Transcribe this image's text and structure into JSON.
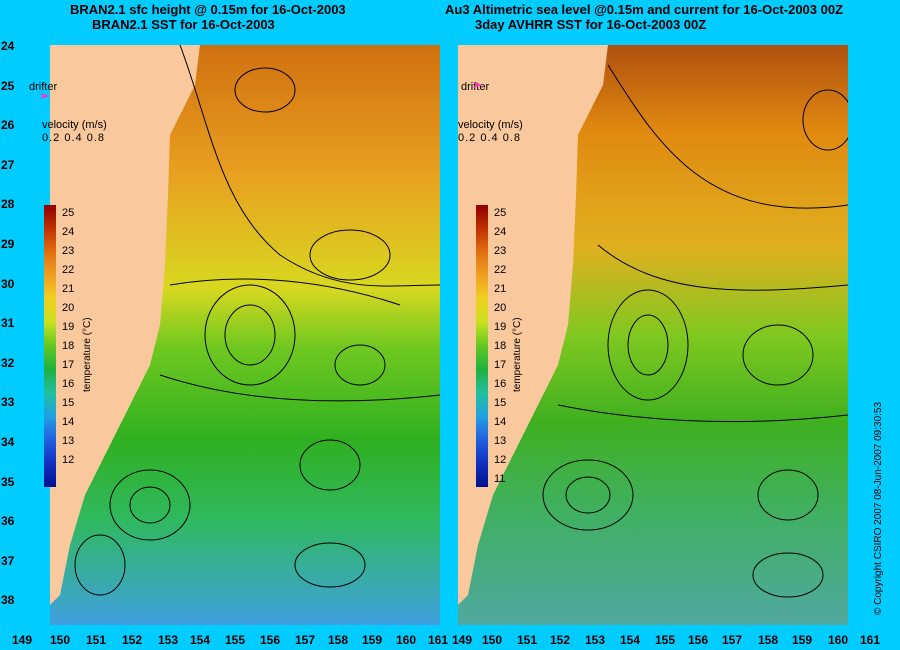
{
  "left_title_1": "BRAN2.1 sfc height @ 0.15m for 16-Oct-2003",
  "left_title_2": "BRAN2.1 SST for 16-Oct-2003",
  "right_title_1": "Au3 Altimetric sea level  @0.15m and current for 16-Oct-2003 00Z",
  "right_title_2": "3day AVHRR SST for 16-Oct-2003 00Z",
  "lat_labels": [
    "24",
    "25",
    "26",
    "27",
    "28",
    "29",
    "30",
    "31",
    "32",
    "33",
    "34",
    "35",
    "36",
    "37",
    "38"
  ],
  "lon_labels": [
    "149",
    "150",
    "151",
    "152",
    "153",
    "154",
    "155",
    "156",
    "157",
    "158",
    "159",
    "160",
    "161"
  ],
  "drifter_label": "drifter",
  "velocity_label": "velocity (m/s)",
  "velocity_scale": "0.2 0.4 0.8",
  "left_colorbar_ticks": [
    "25",
    "24",
    "23",
    "22",
    "21",
    "20",
    "19",
    "18",
    "17",
    "16",
    "15",
    "14",
    "13",
    "12"
  ],
  "right_colorbar_ticks": [
    "25",
    "24",
    "23",
    "22",
    "21",
    "20",
    "19",
    "18",
    "17",
    "16",
    "15",
    "14",
    "13",
    "12",
    "11"
  ],
  "colorbar_title": "temperature (°C)",
  "copyright": "© Copyright CSIRO 2007   08-Jun-2007 09:30:53",
  "colors": {
    "background": "#00ccff",
    "land": "#f9c89d",
    "drifter": "#ff33cc",
    "sst_warm": "#e08a10",
    "sst_mid": "#d0d820",
    "sst_green": "#30b020",
    "sst_cool": "#30c0a0",
    "sst_cold": "#3090e0"
  }
}
